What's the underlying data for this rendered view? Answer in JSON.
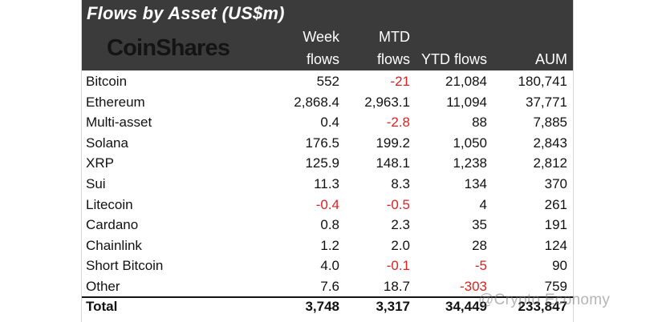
{
  "chart_data": {
    "type": "table",
    "title": "Flows by Asset (US$m)",
    "brand": "CoinShares",
    "columns": [
      {
        "line1": "Week",
        "line2": "flows"
      },
      {
        "line1": "MTD",
        "line2": "flows"
      },
      {
        "line1": "",
        "line2": "YTD flows"
      },
      {
        "line1": "",
        "line2": "AUM"
      }
    ],
    "rows": [
      {
        "asset": "Bitcoin",
        "week_flows": "552",
        "mtd_flows": "-21",
        "ytd_flows": "21,084",
        "aum": "180,741"
      },
      {
        "asset": "Ethereum",
        "week_flows": "2,868.4",
        "mtd_flows": "2,963.1",
        "ytd_flows": "11,094",
        "aum": "37,771"
      },
      {
        "asset": "Multi-asset",
        "week_flows": "0.4",
        "mtd_flows": "-2.8",
        "ytd_flows": "88",
        "aum": "7,885"
      },
      {
        "asset": "Solana",
        "week_flows": "176.5",
        "mtd_flows": "199.2",
        "ytd_flows": "1,050",
        "aum": "2,843"
      },
      {
        "asset": "XRP",
        "week_flows": "125.9",
        "mtd_flows": "148.1",
        "ytd_flows": "1,238",
        "aum": "2,812"
      },
      {
        "asset": "Sui",
        "week_flows": "11.3",
        "mtd_flows": "8.3",
        "ytd_flows": "134",
        "aum": "370"
      },
      {
        "asset": "Litecoin",
        "week_flows": "-0.4",
        "mtd_flows": "-0.5",
        "ytd_flows": "4",
        "aum": "261"
      },
      {
        "asset": "Cardano",
        "week_flows": "0.8",
        "mtd_flows": "2.3",
        "ytd_flows": "35",
        "aum": "191"
      },
      {
        "asset": "Chainlink",
        "week_flows": "1.2",
        "mtd_flows": "2.0",
        "ytd_flows": "28",
        "aum": "124"
      },
      {
        "asset": "Short Bitcoin",
        "week_flows": "4.0",
        "mtd_flows": "-0.1",
        "ytd_flows": "-5",
        "aum": "90"
      },
      {
        "asset": "Other",
        "week_flows": "7.6",
        "mtd_flows": "18.7",
        "ytd_flows": "-303",
        "aum": "759"
      }
    ],
    "total": {
      "asset": "Total",
      "week_flows": "3,748",
      "mtd_flows": "3,317",
      "ytd_flows": "34,449",
      "aum": "233,847"
    },
    "negative_color": "#e02020",
    "header_background": "#3b3b3b"
  },
  "watermark": "@Crypto Economy"
}
